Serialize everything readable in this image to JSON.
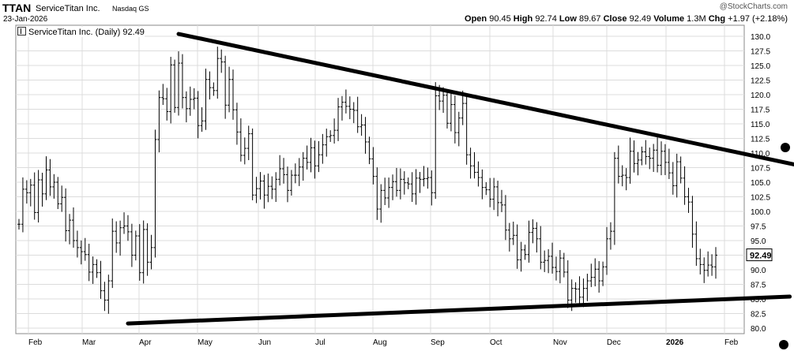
{
  "header": {
    "symbol": "TTAN",
    "company": "ServiceTitan Inc.",
    "exchange": "Nasdaq GS",
    "date": "23-Jan-2026",
    "watermark": "@StockCharts.com",
    "open_label": "Open",
    "open": "90.45",
    "high_label": "High",
    "high": "92.74",
    "low_label": "Low",
    "low": "89.67",
    "close_label": "Close",
    "close": "92.49",
    "volume_label": "Volume",
    "volume": "1.3M",
    "chg_label": "Chg",
    "chg": "+1.97 (+2.18%)"
  },
  "legend": {
    "text": "ServiceTitan Inc. (Daily) 92.49"
  },
  "chart_data": {
    "type": "ohlc",
    "ylim": [
      79,
      131.5
    ],
    "y_ticks": [
      80.0,
      82.5,
      85.0,
      87.5,
      90.0,
      92.5,
      95.0,
      97.5,
      100.0,
      102.5,
      105.0,
      107.5,
      110.0,
      112.5,
      115.0,
      117.5,
      120.0,
      122.5,
      125.0,
      127.5,
      130.0
    ],
    "x_ticks": [
      "Feb",
      "Mar",
      "Apr",
      "May",
      "Jun",
      "Jul",
      "Aug",
      "Sep",
      "Oct",
      "Nov",
      "Dec",
      "2026",
      "Feb"
    ],
    "last_price_label": "92.49",
    "last_price": 92.49,
    "grid": true,
    "series_color": "#000000",
    "trendlines": [
      {
        "name": "upper",
        "from": {
          "bar": 41,
          "price": 130.4
        },
        "to": {
          "bar": 203,
          "price": 107.5
        }
      },
      {
        "name": "lower",
        "from": {
          "bar": 28,
          "price": 80.8
        },
        "to": {
          "bar": 198,
          "price": 85.4
        }
      }
    ],
    "closes": [
      97.8,
      103.8,
      103.2,
      104.5,
      99.8,
      105.4,
      103.0,
      107.1,
      104.2,
      105.0,
      101.3,
      102.4,
      96.7,
      98.5,
      95.0,
      93.8,
      93.1,
      92.6,
      89.6,
      90.9,
      89.5,
      86.4,
      84.8,
      88.1,
      96.6,
      94.6,
      97.2,
      97.5,
      96.5,
      92.5,
      95.8,
      89.5,
      96.9,
      91.3,
      93.8,
      112.3,
      119.5,
      119.3,
      117.1,
      125.1,
      117.8,
      125.4,
      119.5,
      117.6,
      119.2,
      119.4,
      114.7,
      115.5,
      122.6,
      121.2,
      120.7,
      126.2,
      125.6,
      118.2,
      122.6,
      117.4,
      113.6,
      109.6,
      110.8,
      113.3,
      102.8,
      103.9,
      105.2,
      102.8,
      104.3,
      103.8,
      105.5,
      107.3,
      106.3,
      103.6,
      106.2,
      106.2,
      107.6,
      109.1,
      108.4,
      110.9,
      107.8,
      109.7,
      111.4,
      112.8,
      113.0,
      113.9,
      117.9,
      118.7,
      118.0,
      117.5,
      117.3,
      114.5,
      114.8,
      111.9,
      109.0,
      106.0,
      100.4,
      103.6,
      102.3,
      104.1,
      105.1,
      103.6,
      105.5,
      104.9,
      104.7,
      103.0,
      105.7,
      105.5,
      105.6,
      105.8,
      103.2,
      119.8,
      118.9,
      119.9,
      115.1,
      118.3,
      113.5,
      116.0,
      118.5,
      109.7,
      107.8,
      106.7,
      105.8,
      104.1,
      103.7,
      102.1,
      104.2,
      101.5,
      101.1,
      96.8,
      95.3,
      95.9,
      91.7,
      93.4,
      92.6,
      96.4,
      97.1,
      95.3,
      91.3,
      91.6,
      92.3,
      90.4,
      89.7,
      92.0,
      89.6,
      84.8,
      86.8,
      86.7,
      85.3,
      86.8,
      88.1,
      88.7,
      90.1,
      88.1,
      90.5,
      95.3,
      96.6,
      109.1,
      106.0,
      106.2,
      105.8,
      110.3,
      108.2,
      108.8,
      110.2,
      109.4,
      109.1,
      110.5,
      107.9,
      110.3,
      108.4,
      106.6,
      104.4,
      108.5,
      105.7,
      102.5,
      101.6,
      96.1,
      91.9,
      90.9,
      89.9,
      90.8,
      90.5,
      92.5
    ]
  }
}
